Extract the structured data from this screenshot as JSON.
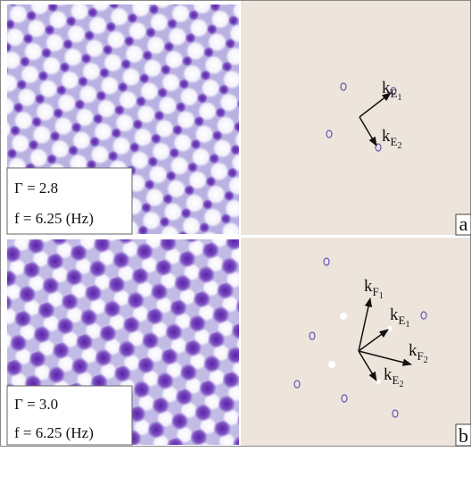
{
  "panels": [
    {
      "gamma": "Γ = 2.8",
      "frequency": "f = 6.25 (Hz)",
      "label": "a",
      "vectors": [
        {
          "base": "k",
          "sub": "E",
          "index": "1"
        },
        {
          "base": "k",
          "sub": "E",
          "index": "2"
        }
      ]
    },
    {
      "gamma": "Γ = 3.0",
      "frequency": "f = 6.25 (Hz)",
      "label": "b",
      "vectors": [
        {
          "base": "k",
          "sub": "F",
          "index": "1"
        },
        {
          "base": "k",
          "sub": "E",
          "index": "1"
        },
        {
          "base": "k",
          "sub": "F",
          "index": "2"
        },
        {
          "base": "k",
          "sub": "E",
          "index": "2"
        }
      ]
    }
  ]
}
